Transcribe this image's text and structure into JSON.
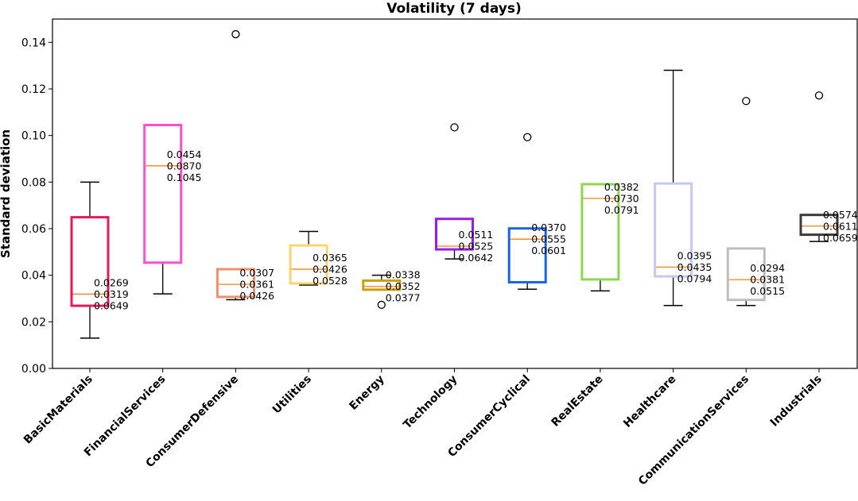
{
  "chart_data": {
    "type": "box",
    "title": "Volatility (7 days)",
    "xlabel": "",
    "ylabel": "Standard deviation",
    "ylim": [
      0,
      0.15
    ],
    "yticks": [
      "0.00",
      "0.02",
      "0.04",
      "0.06",
      "0.08",
      "0.10",
      "0.12",
      "0.14"
    ],
    "grid": false,
    "median_color": "#ff7f0e",
    "boxes": [
      {
        "category": "BasicMaterials",
        "color": "#e6195a",
        "whisker_low": 0.013,
        "q1": 0.0269,
        "median": 0.0319,
        "q3": 0.0649,
        "whisker_high": 0.08,
        "outliers": [],
        "labels": [
          "0.0269",
          "0.0319",
          "0.0649"
        ]
      },
      {
        "category": "FinancialServices",
        "color": "#ff4fcf",
        "whisker_low": 0.032,
        "q1": 0.0454,
        "median": 0.087,
        "q3": 0.1045,
        "whisker_high": 0.1045,
        "outliers": [],
        "labels": [
          "0.0454",
          "0.0870",
          "0.1045"
        ]
      },
      {
        "category": "ConsumerDefensive",
        "color": "#f0916a",
        "whisker_low": 0.0295,
        "q1": 0.0307,
        "median": 0.0361,
        "q3": 0.0426,
        "whisker_high": 0.0426,
        "outliers": [
          0.1435
        ],
        "labels": [
          "0.0307",
          "0.0361",
          "0.0426"
        ]
      },
      {
        "category": "Utilities",
        "color": "#ffd36b",
        "whisker_low": 0.0358,
        "q1": 0.0365,
        "median": 0.0426,
        "q3": 0.0528,
        "whisker_high": 0.0588,
        "outliers": [],
        "labels": [
          "0.0365",
          "0.0426",
          "0.0528"
        ]
      },
      {
        "category": "Energy",
        "color": "#c9a000",
        "whisker_low": 0.0338,
        "q1": 0.0338,
        "median": 0.0352,
        "q3": 0.0377,
        "whisker_high": 0.04,
        "outliers": [
          0.0273
        ],
        "labels": [
          "0.0338",
          "0.0352",
          "0.0377"
        ]
      },
      {
        "category": "Technology",
        "color": "#9a1cf0",
        "whisker_low": 0.047,
        "q1": 0.0511,
        "median": 0.0525,
        "q3": 0.0642,
        "whisker_high": 0.0642,
        "outliers": [
          0.1035
        ],
        "labels": [
          "0.0511",
          "0.0525",
          "0.0642"
        ]
      },
      {
        "category": "ConsumerCyclical",
        "color": "#1664e8",
        "whisker_low": 0.034,
        "q1": 0.037,
        "median": 0.0555,
        "q3": 0.0601,
        "whisker_high": 0.0601,
        "outliers": [
          0.0993
        ],
        "labels": [
          "0.0370",
          "0.0555",
          "0.0601"
        ]
      },
      {
        "category": "RealEstate",
        "color": "#8ed651",
        "whisker_low": 0.0333,
        "q1": 0.0382,
        "median": 0.073,
        "q3": 0.0791,
        "whisker_high": 0.0791,
        "outliers": [],
        "labels": [
          "0.0382",
          "0.0730",
          "0.0791"
        ]
      },
      {
        "category": "Healthcare",
        "color": "#c7c7f5",
        "whisker_low": 0.027,
        "q1": 0.0395,
        "median": 0.0435,
        "q3": 0.0794,
        "whisker_high": 0.128,
        "outliers": [],
        "labels": [
          "0.0395",
          "0.0435",
          "0.0794"
        ]
      },
      {
        "category": "CommunicationServices",
        "color": "#bdbdbd",
        "whisker_low": 0.027,
        "q1": 0.0294,
        "median": 0.0381,
        "q3": 0.0515,
        "whisker_high": 0.0515,
        "outliers": [
          0.1148
        ],
        "labels": [
          "0.0294",
          "0.0381",
          "0.0515"
        ]
      },
      {
        "category": "Industrials",
        "color": "#3a3a3a",
        "whisker_low": 0.0545,
        "q1": 0.0574,
        "median": 0.0611,
        "q3": 0.0659,
        "whisker_high": 0.0659,
        "outliers": [
          0.1172
        ],
        "labels": [
          "0.0574",
          "0.0611",
          "0.0659"
        ]
      }
    ]
  }
}
